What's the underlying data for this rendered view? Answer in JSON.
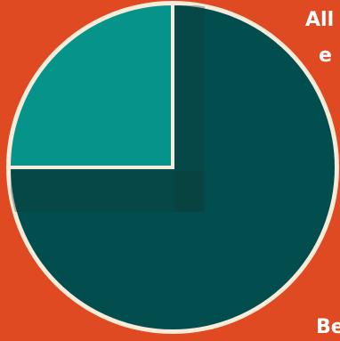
{
  "chart_data": {
    "type": "pie",
    "slices": [
      {
        "value": 75,
        "color": "#024e4f"
      },
      {
        "value": 25,
        "color": "#05938a"
      }
    ],
    "start_angle_deg": 0,
    "direction": "clockwise",
    "border_color": "#f6ecd9",
    "shadow_color": "#0f3b3a"
  },
  "edge_text": {
    "line1": "All",
    "line2": "e",
    "line3": "",
    "line4": "Be"
  }
}
